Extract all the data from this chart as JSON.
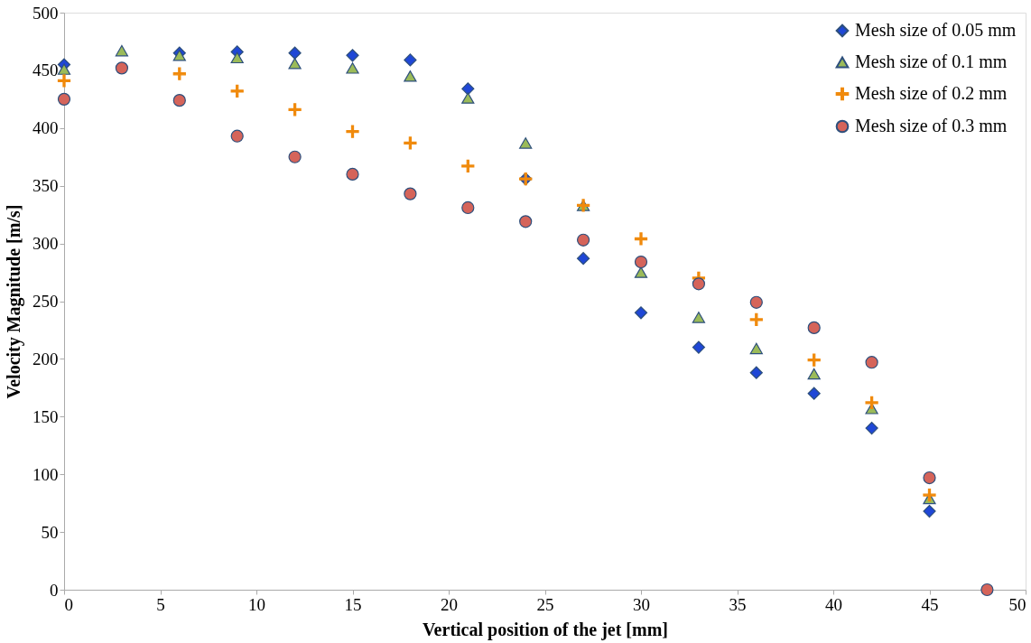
{
  "chart_data": {
    "type": "scatter",
    "xlabel": "Vertical position of the jet [mm]",
    "ylabel": "Velocity Magnitude [m/s]",
    "x": [
      0,
      3,
      6,
      9,
      12,
      15,
      18,
      21,
      24,
      27,
      30,
      33,
      36,
      39,
      42,
      45,
      48
    ],
    "xlim": [
      0,
      50
    ],
    "xticks": [
      0,
      5,
      10,
      15,
      20,
      25,
      30,
      35,
      40,
      45,
      50
    ],
    "ylim": [
      0,
      500
    ],
    "yticks": [
      0,
      50,
      100,
      150,
      200,
      250,
      300,
      350,
      400,
      450,
      500
    ],
    "grid": false,
    "legend": "top right",
    "series": [
      {
        "name": "Mesh size of 0.05 mm",
        "color": "#1f47d6",
        "marker": "diamond",
        "values": [
          455,
          null,
          465,
          466,
          465,
          463,
          459,
          434,
          356,
          287,
          240,
          210,
          188,
          170,
          140,
          68,
          null
        ]
      },
      {
        "name": "Mesh size of 0.1 mm",
        "color": "#9bbb59",
        "marker": "triangle",
        "values": [
          451,
          467,
          463,
          461,
          456,
          452,
          445,
          426,
          387,
          333,
          275,
          236,
          209,
          187,
          157,
          79,
          null
        ]
      },
      {
        "name": "Mesh size of 0.2 mm",
        "color": "#f08a0c",
        "marker": "cross",
        "values": [
          441,
          null,
          447,
          432,
          416,
          397,
          387,
          367,
          356,
          333,
          304,
          270,
          234,
          199,
          162,
          82,
          null
        ]
      },
      {
        "name": "Mesh size of 0.3 mm",
        "color": "#d5645a",
        "marker": "circle",
        "values": [
          425,
          452,
          424,
          393,
          375,
          360,
          343,
          331,
          319,
          303,
          284,
          265,
          249,
          227,
          197,
          97,
          0
        ]
      }
    ]
  }
}
